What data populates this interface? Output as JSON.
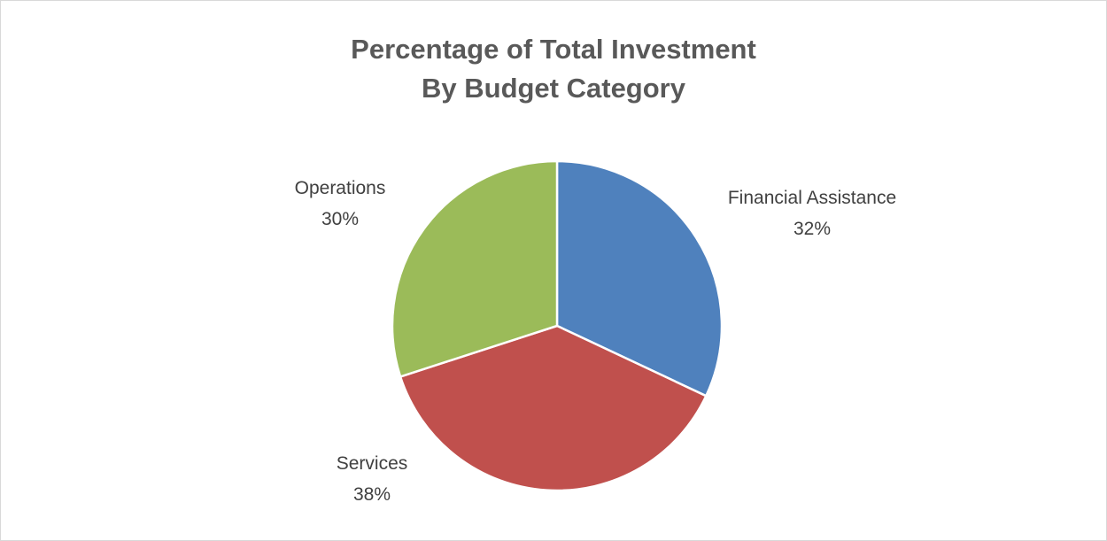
{
  "chart_data": {
    "type": "pie",
    "title_lines": [
      "Percentage of Total Investment",
      "By Budget Category"
    ],
    "slices": [
      {
        "label": "Financial Assistance",
        "value": 32,
        "value_label": "32%",
        "color": "#4f81bd"
      },
      {
        "label": "Services",
        "value": 38,
        "value_label": "38%",
        "color": "#c0504d"
      },
      {
        "label": "Operations",
        "value": 30,
        "value_label": "30%",
        "color": "#9bbb59"
      }
    ],
    "start_angle_deg": 0,
    "direction": "clockwise",
    "legend": "none",
    "data_labels": "outside"
  }
}
